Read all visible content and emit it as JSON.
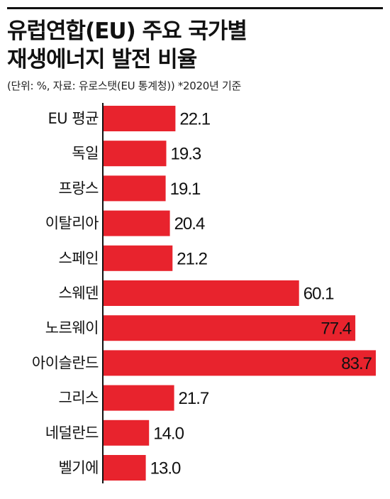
{
  "header": {
    "title_line1": "유럽연합(EU) 주요 국가별",
    "title_line2": "재생에너지 발전 비율",
    "subtitle": "(단위: %, 자료: 유로스탯(EU 통계청))  *2020년 기준"
  },
  "colors": {
    "bar": "#e8232d",
    "text": "#111111",
    "axis": "#111111"
  },
  "chart_data": {
    "type": "bar",
    "orientation": "horizontal",
    "title": "유럽연합(EU) 주요 국가별 재생에너지 발전 비율",
    "subtitle": "(단위: %, 자료: 유로스탯(EU 통계청))  *2020년 기준",
    "categories": [
      "EU 평균",
      "독일",
      "프랑스",
      "이탈리아",
      "스페인",
      "스웨덴",
      "노르웨이",
      "아이슬란드",
      "그리스",
      "네덜란드",
      "벨기에"
    ],
    "values": [
      22.1,
      19.3,
      19.1,
      20.4,
      21.2,
      60.1,
      77.4,
      83.7,
      21.7,
      14.0,
      13.0
    ],
    "value_labels": [
      "22.1",
      "19.3",
      "19.1",
      "20.4",
      "21.2",
      "60.1",
      "77.4",
      "83.7",
      "21.7",
      "14.0",
      "13.0"
    ],
    "xlim": [
      0,
      83.7
    ],
    "grid": false,
    "legend": "none"
  }
}
